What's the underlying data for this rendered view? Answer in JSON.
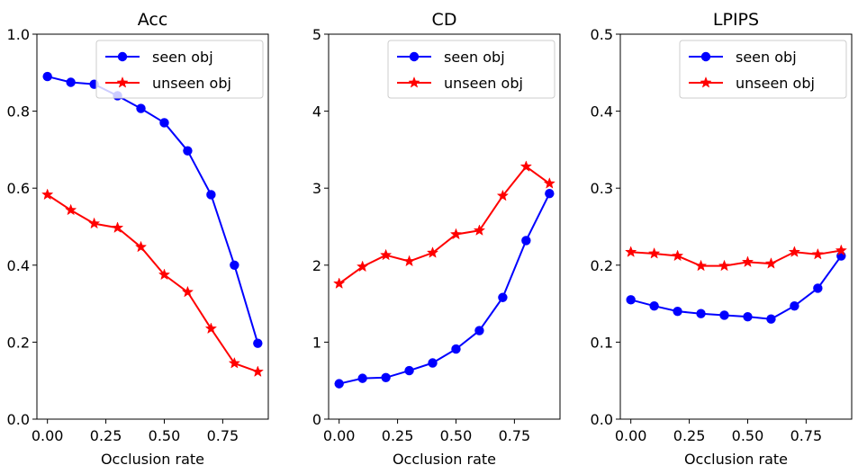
{
  "chart_data": [
    {
      "type": "line",
      "title": "Acc",
      "xlabel": "Occlusion rate",
      "ylabel": "",
      "xlim": [
        -0.045,
        0.945
      ],
      "ylim": [
        0,
        1.0
      ],
      "xticks": [
        "0.00",
        "0.25",
        "0.50",
        "0.75"
      ],
      "yticks": [
        "0.0",
        "0.2",
        "0.4",
        "0.6",
        "0.8",
        "1.0"
      ],
      "grid": false,
      "legend": "upper right",
      "x": [
        0.0,
        0.1,
        0.2,
        0.3,
        0.4,
        0.5,
        0.6,
        0.7,
        0.8,
        0.9
      ],
      "series": [
        {
          "name": "seen obj",
          "color": "#0000ff",
          "marker": "circle",
          "values": [
            0.89,
            0.875,
            0.87,
            0.84,
            0.807,
            0.77,
            0.697,
            0.583,
            0.4,
            0.197
          ]
        },
        {
          "name": "unseen obj",
          "color": "#ff0000",
          "marker": "star",
          "values": [
            0.583,
            0.543,
            0.508,
            0.497,
            0.447,
            0.375,
            0.33,
            0.235,
            0.145,
            0.123
          ]
        }
      ]
    },
    {
      "type": "line",
      "title": "CD",
      "xlabel": "Occlusion rate",
      "ylabel": "",
      "xlim": [
        -0.045,
        0.945
      ],
      "ylim": [
        0,
        5
      ],
      "xticks": [
        "0.00",
        "0.25",
        "0.50",
        "0.75"
      ],
      "yticks": [
        "0",
        "1",
        "2",
        "3",
        "4",
        "5"
      ],
      "grid": false,
      "legend": "upper right",
      "x": [
        0.0,
        0.1,
        0.2,
        0.3,
        0.4,
        0.5,
        0.6,
        0.7,
        0.8,
        0.9
      ],
      "series": [
        {
          "name": "seen obj",
          "color": "#0000ff",
          "marker": "circle",
          "values": [
            0.46,
            0.53,
            0.54,
            0.63,
            0.73,
            0.91,
            1.15,
            1.58,
            2.32,
            2.93
          ]
        },
        {
          "name": "unseen obj",
          "color": "#ff0000",
          "marker": "star",
          "values": [
            1.76,
            1.98,
            2.13,
            2.05,
            2.16,
            2.4,
            2.45,
            2.9,
            3.28,
            3.06
          ]
        }
      ]
    },
    {
      "type": "line",
      "title": "LPIPS",
      "xlabel": "Occlusion rate",
      "ylabel": "",
      "xlim": [
        -0.045,
        0.945
      ],
      "ylim": [
        0,
        0.5
      ],
      "xticks": [
        "0.00",
        "0.25",
        "0.50",
        "0.75"
      ],
      "yticks": [
        "0.0",
        "0.1",
        "0.2",
        "0.3",
        "0.4",
        "0.5"
      ],
      "grid": false,
      "legend": "upper right",
      "x": [
        0.0,
        0.1,
        0.2,
        0.3,
        0.4,
        0.5,
        0.6,
        0.7,
        0.8,
        0.9
      ],
      "series": [
        {
          "name": "seen obj",
          "color": "#0000ff",
          "marker": "circle",
          "values": [
            0.155,
            0.147,
            0.14,
            0.137,
            0.135,
            0.133,
            0.13,
            0.147,
            0.17,
            0.212
          ]
        },
        {
          "name": "unseen obj",
          "color": "#ff0000",
          "marker": "star",
          "values": [
            0.217,
            0.215,
            0.212,
            0.199,
            0.199,
            0.204,
            0.202,
            0.217,
            0.214,
            0.219
          ]
        }
      ]
    }
  ]
}
